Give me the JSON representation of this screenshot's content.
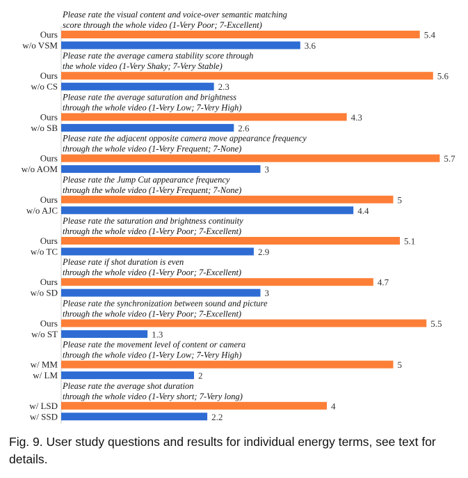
{
  "chart_data": {
    "type": "bar",
    "orientation": "horizontal",
    "xlim": [
      0,
      6
    ],
    "colors": {
      "ours": "#fd7f37",
      "baseline": "#2e6cd4"
    },
    "groups": [
      {
        "question": [
          "Please rate the visual content and voice-over semantic matching",
          "score through the whole video (1-Very Poor; 7-Excellent)"
        ],
        "bars": [
          {
            "label": "Ours",
            "value": 5.4,
            "value_label": "5.4"
          },
          {
            "label": "w/o VSM",
            "value": 3.6,
            "value_label": "3.6"
          }
        ]
      },
      {
        "question": [
          "Please rate the average camera stability score through",
          "the whole video (1-Very Shaky; 7-Very Stable)"
        ],
        "bars": [
          {
            "label": "Ours",
            "value": 5.6,
            "value_label": "5.6"
          },
          {
            "label": "w/o CS",
            "value": 2.3,
            "value_label": "2.3"
          }
        ]
      },
      {
        "question": [
          "Please rate the average saturation and brightness",
          "through the whole video (1-Very Low; 7-Very High)"
        ],
        "bars": [
          {
            "label": "Ours",
            "value": 4.3,
            "value_label": "4.3"
          },
          {
            "label": "w/o SB",
            "value": 2.6,
            "value_label": "2.6"
          }
        ]
      },
      {
        "question": [
          "Please rate the adjacent opposite camera move appearance frequency",
          "through the whole video (1-Very Frequent; 7-None)"
        ],
        "bars": [
          {
            "label": "Ours",
            "value": 5.7,
            "value_label": "5.7"
          },
          {
            "label": "w/o AOM",
            "value": 3.0,
            "value_label": "3"
          }
        ]
      },
      {
        "question": [
          "Please rate the Jump Cut appearance frequency",
          "through the whole video (1-Very Frequent; 7-None)"
        ],
        "bars": [
          {
            "label": "Ours",
            "value": 5.0,
            "value_label": "5"
          },
          {
            "label": "w/o AJC",
            "value": 4.4,
            "value_label": "4.4"
          }
        ]
      },
      {
        "question": [
          "Please rate the saturation and brightness continuity",
          "through the whole video (1-Very Poor; 7-Excellent)"
        ],
        "bars": [
          {
            "label": "Ours",
            "value": 5.1,
            "value_label": "5.1"
          },
          {
            "label": "w/o TC",
            "value": 2.9,
            "value_label": "2.9"
          }
        ]
      },
      {
        "question": [
          "Please rate if shot duration is even",
          "through the whole video (1-Very Poor; 7-Excellent)"
        ],
        "bars": [
          {
            "label": "Ours",
            "value": 4.7,
            "value_label": "4.7"
          },
          {
            "label": "w/o SD",
            "value": 3.0,
            "value_label": "3"
          }
        ]
      },
      {
        "question": [
          "Please rate the synchronization between sound and picture",
          "through the whole video (1-Very Poor; 7-Excellent)"
        ],
        "bars": [
          {
            "label": "Ours",
            "value": 5.5,
            "value_label": "5.5"
          },
          {
            "label": "w/o ST",
            "value": 1.3,
            "value_label": "1.3"
          }
        ]
      },
      {
        "question": [
          "Please rate the movement level of content or camera",
          "through the whole video (1-Very Low; 7-Very High)"
        ],
        "bars": [
          {
            "label": "w/ MM",
            "value": 5.0,
            "value_label": "5"
          },
          {
            "label": "w/ LM",
            "value": 2.0,
            "value_label": "2"
          }
        ]
      },
      {
        "question": [
          "Please rate the average shot duration",
          "through the whole video (1-Very short; 7-Very long)"
        ],
        "bars": [
          {
            "label": "w/ LSD",
            "value": 4.0,
            "value_label": "4"
          },
          {
            "label": "w/ SSD",
            "value": 2.2,
            "value_label": "2.2"
          }
        ]
      }
    ]
  },
  "caption": "Fig. 9.  User study questions and results for individual energy terms, see text for details."
}
